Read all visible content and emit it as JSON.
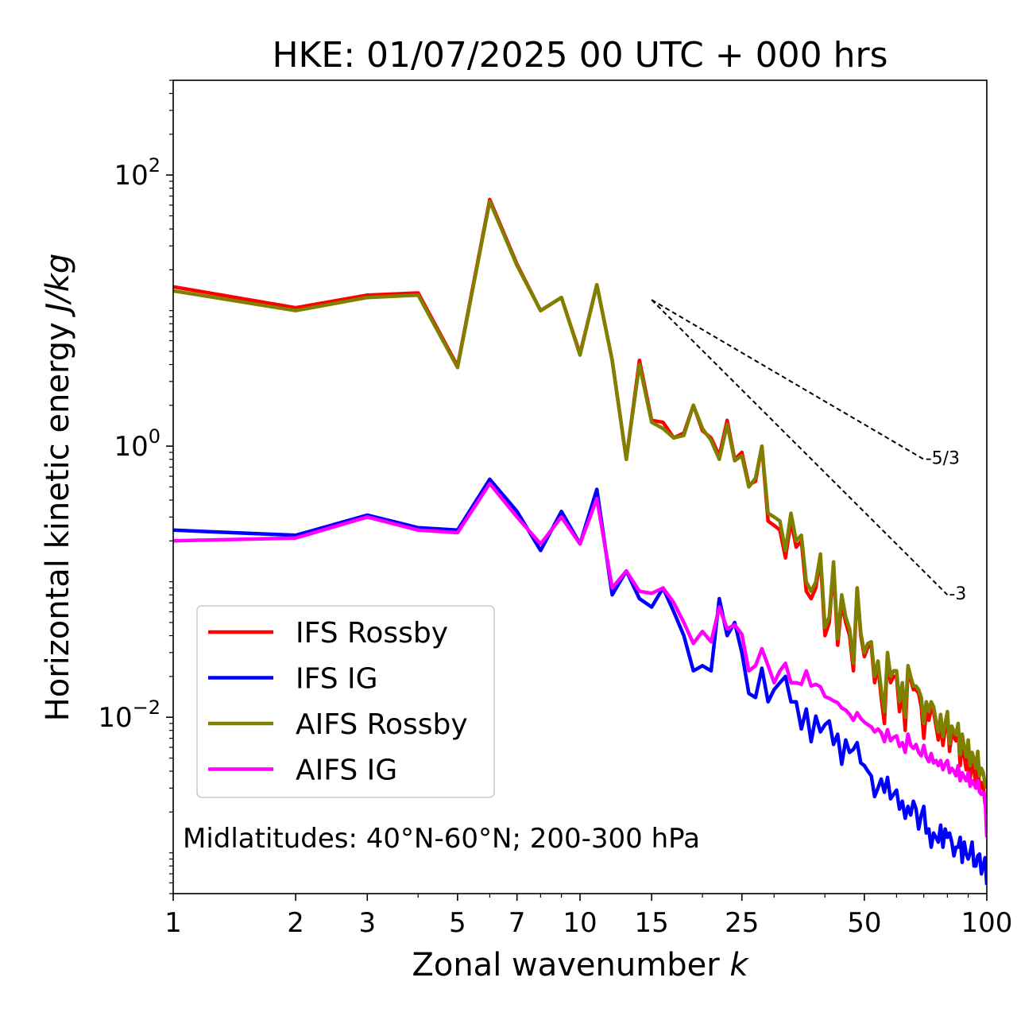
{
  "chart_data": {
    "type": "line",
    "title": "HKE: 01/07/2025 00 UTC + 000 hrs",
    "xlabel": "Zonal wavenumber",
    "xlabel_var": "k",
    "ylabel": "Horizontal kinetic energy",
    "ylabel_unit": "J/kg",
    "xscale": "log",
    "yscale": "log",
    "xlim": [
      1,
      100
    ],
    "ylim": [
      0.0005,
      500
    ],
    "xticks": [
      {
        "value": 1,
        "label": "1"
      },
      {
        "value": 2,
        "label": "2"
      },
      {
        "value": 3,
        "label": "3"
      },
      {
        "value": 5,
        "label": "5"
      },
      {
        "value": 7,
        "label": "7"
      },
      {
        "value": 10,
        "label": "10"
      },
      {
        "value": 15,
        "label": "15"
      },
      {
        "value": 25,
        "label": "25"
      },
      {
        "value": 50,
        "label": "50"
      },
      {
        "value": 100,
        "label": "100"
      }
    ],
    "yticks": [
      {
        "value": 100,
        "base": "10",
        "exp": "2"
      },
      {
        "value": 1,
        "base": "10",
        "exp": "0"
      },
      {
        "value": 0.01,
        "base": "10",
        "exp": "−2"
      }
    ],
    "annotation": "Midlatitudes: 40°N-60°N; 200-300 hPa",
    "legend_position": "lower-left",
    "reference_slopes": [
      {
        "label": "-5/3",
        "k_start": 15,
        "k_end": 70,
        "e_start": 12.0,
        "e_end": 0.8
      },
      {
        "label": "-3",
        "k_start": 15,
        "k_end": 80,
        "e_start": 12.0,
        "e_end": 0.08
      }
    ],
    "series": [
      {
        "name": "IFS Rossby",
        "color": "#ff0000",
        "k": [
          1,
          2,
          3,
          4,
          5,
          6,
          7,
          8,
          9,
          10,
          11,
          12,
          13,
          14,
          15,
          16,
          17,
          18,
          19,
          20,
          21,
          22,
          23,
          24,
          25,
          26,
          27,
          28,
          29,
          30,
          31,
          32,
          33,
          34,
          35,
          36,
          37,
          38,
          39,
          40,
          41,
          42,
          43,
          44,
          45,
          46,
          47,
          48,
          49,
          50,
          51,
          52,
          53,
          54,
          55,
          56,
          57,
          58,
          59,
          60,
          61,
          62,
          63,
          64,
          65,
          66,
          67,
          68,
          69,
          70,
          71,
          72,
          73,
          74,
          75,
          76,
          77,
          78,
          79,
          80,
          81,
          82,
          83,
          84,
          85,
          86,
          87,
          88,
          89,
          90,
          91,
          92,
          93,
          94,
          95,
          96,
          97,
          98,
          99,
          100
        ],
        "values": [
          15.0,
          10.5,
          13.0,
          13.5,
          3.9,
          66,
          22,
          10,
          12.5,
          4.8,
          15.5,
          4.3,
          0.8,
          4.3,
          1.55,
          1.5,
          1.15,
          1.25,
          2.0,
          1.3,
          1.15,
          0.85,
          1.55,
          0.8,
          0.9,
          0.52,
          0.55,
          1.0,
          0.28,
          0.26,
          0.24,
          0.15,
          0.28,
          0.18,
          0.2,
          0.085,
          0.075,
          0.09,
          0.15,
          0.04,
          0.05,
          0.13,
          0.034,
          0.07,
          0.05,
          0.04,
          0.022,
          0.09,
          0.04,
          0.028,
          0.033,
          0.034,
          0.018,
          0.024,
          0.014,
          0.009,
          0.028,
          0.018,
          0.02,
          0.02,
          0.011,
          0.016,
          0.008,
          0.022,
          0.019,
          0.016,
          0.016,
          0.015,
          0.012,
          0.007,
          0.011,
          0.0095,
          0.0115,
          0.011,
          0.0087,
          0.0068,
          0.0094,
          0.0062,
          0.0082,
          0.0103,
          0.0056,
          0.0077,
          0.0071,
          0.0067,
          0.0081,
          0.0044,
          0.0067,
          0.0052,
          0.0041,
          0.0061,
          0.0035,
          0.0047,
          0.0041,
          0.0032,
          0.0049,
          0.0029,
          0.0033,
          0.0031,
          0.0023,
          0.0023
        ]
      },
      {
        "name": "IFS IG",
        "color": "#0000ff",
        "k": [
          1,
          2,
          3,
          4,
          5,
          6,
          7,
          8,
          9,
          10,
          11,
          12,
          13,
          14,
          15,
          16,
          17,
          18,
          19,
          20,
          21,
          22,
          23,
          24,
          25,
          26,
          27,
          28,
          29,
          30,
          31,
          32,
          33,
          34,
          35,
          36,
          37,
          38,
          39,
          40,
          41,
          42,
          43,
          44,
          45,
          46,
          47,
          48,
          49,
          50,
          51,
          52,
          53,
          54,
          55,
          56,
          57,
          58,
          59,
          60,
          61,
          62,
          63,
          64,
          65,
          66,
          67,
          68,
          69,
          70,
          71,
          72,
          73,
          74,
          75,
          76,
          77,
          78,
          79,
          80,
          81,
          82,
          83,
          84,
          85,
          86,
          87,
          88,
          89,
          90,
          91,
          92,
          93,
          94,
          95,
          96,
          97,
          98,
          99,
          100
        ],
        "values": [
          0.24,
          0.22,
          0.31,
          0.25,
          0.24,
          0.57,
          0.33,
          0.17,
          0.33,
          0.19,
          0.48,
          0.08,
          0.12,
          0.075,
          0.065,
          0.09,
          0.06,
          0.04,
          0.022,
          0.024,
          0.022,
          0.075,
          0.04,
          0.05,
          0.03,
          0.015,
          0.014,
          0.023,
          0.013,
          0.016,
          0.018,
          0.02,
          0.013,
          0.013,
          0.0082,
          0.0115,
          0.0066,
          0.0102,
          0.0078,
          0.0088,
          0.0094,
          0.0063,
          0.0075,
          0.0045,
          0.0068,
          0.0055,
          0.0058,
          0.0065,
          0.0046,
          0.0044,
          0.004,
          0.0037,
          0.0026,
          0.003,
          0.0035,
          0.0028,
          0.0036,
          0.0025,
          0.0027,
          0.0029,
          0.0021,
          0.0024,
          0.0018,
          0.0022,
          0.0019,
          0.0024,
          0.0021,
          0.0015,
          0.0019,
          0.0022,
          0.0014,
          0.0015,
          0.0011,
          0.0014,
          0.0013,
          0.0012,
          0.0016,
          0.0011,
          0.0015,
          0.0013,
          0.0014,
          0.0012,
          0.00095,
          0.0011,
          0.0011,
          0.0013,
          0.00085,
          0.0012,
          0.00098,
          0.0009,
          0.001,
          0.0012,
          0.0008,
          0.0008,
          0.00095,
          0.00098,
          0.0007,
          0.0008,
          0.00092,
          0.00058
        ]
      },
      {
        "name": "AIFS Rossby",
        "color": "#808000",
        "k": [
          1,
          2,
          3,
          4,
          5,
          6,
          7,
          8,
          9,
          10,
          11,
          12,
          13,
          14,
          15,
          16,
          17,
          18,
          19,
          20,
          21,
          22,
          23,
          24,
          25,
          26,
          27,
          28,
          29,
          30,
          31,
          32,
          33,
          34,
          35,
          36,
          37,
          38,
          39,
          40,
          41,
          42,
          43,
          44,
          45,
          46,
          47,
          48,
          49,
          50,
          51,
          52,
          53,
          54,
          55,
          56,
          57,
          58,
          59,
          60,
          61,
          62,
          63,
          64,
          65,
          66,
          67,
          68,
          69,
          70,
          71,
          72,
          73,
          74,
          75,
          76,
          77,
          78,
          79,
          80,
          81,
          82,
          83,
          84,
          85,
          86,
          87,
          88,
          89,
          90,
          91,
          92,
          93,
          94,
          95,
          96,
          97,
          98,
          99,
          100
        ],
        "values": [
          14.0,
          10.0,
          12.5,
          13.0,
          3.8,
          64,
          21.5,
          10.0,
          12.5,
          4.7,
          15.5,
          4.3,
          0.8,
          4.0,
          1.5,
          1.35,
          1.15,
          1.2,
          2.0,
          1.35,
          1.1,
          0.8,
          1.45,
          0.78,
          0.85,
          0.5,
          0.58,
          1.0,
          0.32,
          0.3,
          0.28,
          0.17,
          0.32,
          0.2,
          0.22,
          0.1,
          0.085,
          0.1,
          0.16,
          0.046,
          0.055,
          0.14,
          0.038,
          0.08,
          0.055,
          0.045,
          0.025,
          0.09,
          0.042,
          0.03,
          0.035,
          0.036,
          0.02,
          0.026,
          0.016,
          0.011,
          0.03,
          0.02,
          0.022,
          0.022,
          0.013,
          0.018,
          0.01,
          0.024,
          0.02,
          0.017,
          0.017,
          0.016,
          0.014,
          0.009,
          0.013,
          0.011,
          0.013,
          0.012,
          0.0095,
          0.0078,
          0.0105,
          0.0072,
          0.009,
          0.011,
          0.0064,
          0.0086,
          0.0079,
          0.0074,
          0.009,
          0.0053,
          0.0075,
          0.006,
          0.0051,
          0.0068,
          0.0044,
          0.0055,
          0.0049,
          0.0042,
          0.0056,
          0.0037,
          0.0042,
          0.0039,
          0.0032,
          0.003
        ]
      },
      {
        "name": "AIFS IG",
        "color": "#ff00ff",
        "k": [
          1,
          2,
          3,
          4,
          5,
          6,
          7,
          8,
          9,
          10,
          11,
          12,
          13,
          14,
          15,
          16,
          17,
          18,
          19,
          20,
          21,
          22,
          23,
          24,
          25,
          26,
          27,
          28,
          29,
          30,
          31,
          32,
          33,
          34,
          35,
          36,
          37,
          38,
          39,
          40,
          41,
          42,
          43,
          44,
          45,
          46,
          47,
          48,
          49,
          50,
          51,
          52,
          53,
          54,
          55,
          56,
          57,
          58,
          59,
          60,
          61,
          62,
          63,
          64,
          65,
          66,
          67,
          68,
          69,
          70,
          71,
          72,
          73,
          74,
          75,
          76,
          77,
          78,
          79,
          80,
          81,
          82,
          83,
          84,
          85,
          86,
          87,
          88,
          89,
          90,
          91,
          92,
          93,
          94,
          95,
          96,
          97,
          98,
          99,
          100
        ],
        "values": [
          0.2,
          0.21,
          0.3,
          0.24,
          0.23,
          0.53,
          0.3,
          0.19,
          0.3,
          0.19,
          0.41,
          0.09,
          0.12,
          0.085,
          0.082,
          0.09,
          0.07,
          0.05,
          0.035,
          0.043,
          0.036,
          0.065,
          0.045,
          0.048,
          0.041,
          0.022,
          0.024,
          0.032,
          0.024,
          0.018,
          0.022,
          0.025,
          0.018,
          0.018,
          0.0175,
          0.022,
          0.017,
          0.0175,
          0.0168,
          0.0142,
          0.0138,
          0.0132,
          0.0128,
          0.0117,
          0.0113,
          0.0105,
          0.0095,
          0.0108,
          0.0098,
          0.0092,
          0.0088,
          0.0085,
          0.0078,
          0.0082,
          0.0077,
          0.0066,
          0.0081,
          0.0067,
          0.0071,
          0.0073,
          0.0061,
          0.0065,
          0.0055,
          0.0075,
          0.0062,
          0.0059,
          0.0063,
          0.0055,
          0.0052,
          0.0062,
          0.0051,
          0.0047,
          0.0054,
          0.0046,
          0.0048,
          0.0044,
          0.0048,
          0.0041,
          0.0045,
          0.0048,
          0.0039,
          0.0042,
          0.004,
          0.0037,
          0.0044,
          0.0034,
          0.0039,
          0.0036,
          0.0034,
          0.0039,
          0.0031,
          0.0034,
          0.0032,
          0.003,
          0.0034,
          0.0028,
          0.0027,
          0.0028,
          0.0026,
          0.0013
        ]
      }
    ]
  }
}
